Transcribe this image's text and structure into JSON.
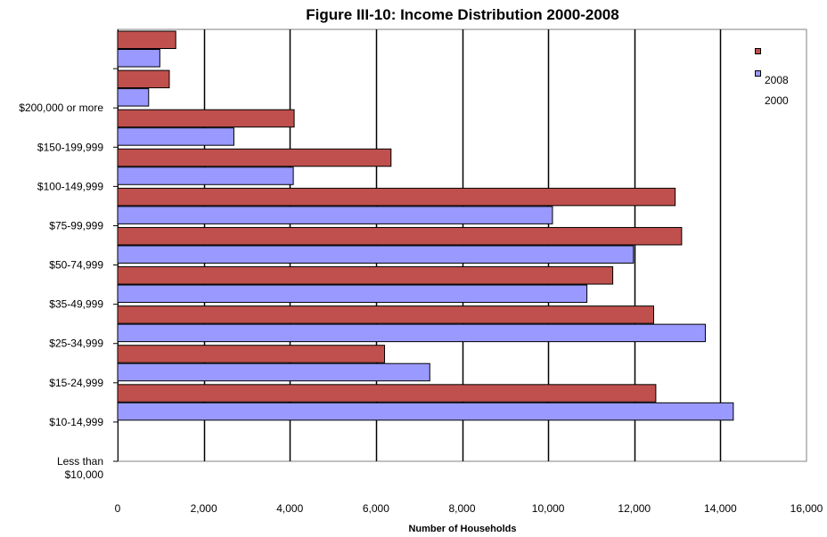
{
  "chart_data": {
    "type": "bar",
    "orientation": "horizontal",
    "title": "Figure III-10: Income Distribution 2000-2008",
    "xlabel": "Number of Households",
    "ylabel": "",
    "xlim": [
      0,
      16000
    ],
    "x_ticks": [
      "0",
      "2,000",
      "4,000",
      "6,000",
      "8,000",
      "10,000",
      "12,000",
      "14,000",
      "16,000"
    ],
    "grid": true,
    "legend_position": "right",
    "categories_top_to_bottom": [
      "",
      "$200,000 or more",
      "$150-199,999",
      "$100-149,999",
      "$75-99,999",
      "$50-74,999",
      "$35-49,999",
      "$25-34,999",
      "$15-24,999",
      "$10-14,999",
      "Less than $10,000"
    ],
    "category_label_lines": [
      [
        ""
      ],
      [
        "$200,000 or more"
      ],
      [
        "$150-199,999"
      ],
      [
        "$100-149,999"
      ],
      [
        "$75-99,999"
      ],
      [
        "$50-74,999"
      ],
      [
        "$35-49,999"
      ],
      [
        "$25-34,999"
      ],
      [
        "$15-24,999"
      ],
      [
        "$10-14,999"
      ],
      [
        "Less than",
        "$10,000"
      ]
    ],
    "series": [
      {
        "name": "2008",
        "color": "#c0504d",
        "values": [
          1350,
          1200,
          4100,
          6350,
          12950,
          13100,
          11500,
          12450,
          6200,
          12500
        ]
      },
      {
        "name": "2000",
        "color": "#9999ff",
        "values": [
          980,
          720,
          2700,
          4080,
          10100,
          11980,
          10900,
          13650,
          7250,
          14300
        ]
      }
    ],
    "legend_labels": [
      "",
      "2008",
      "2000"
    ]
  }
}
